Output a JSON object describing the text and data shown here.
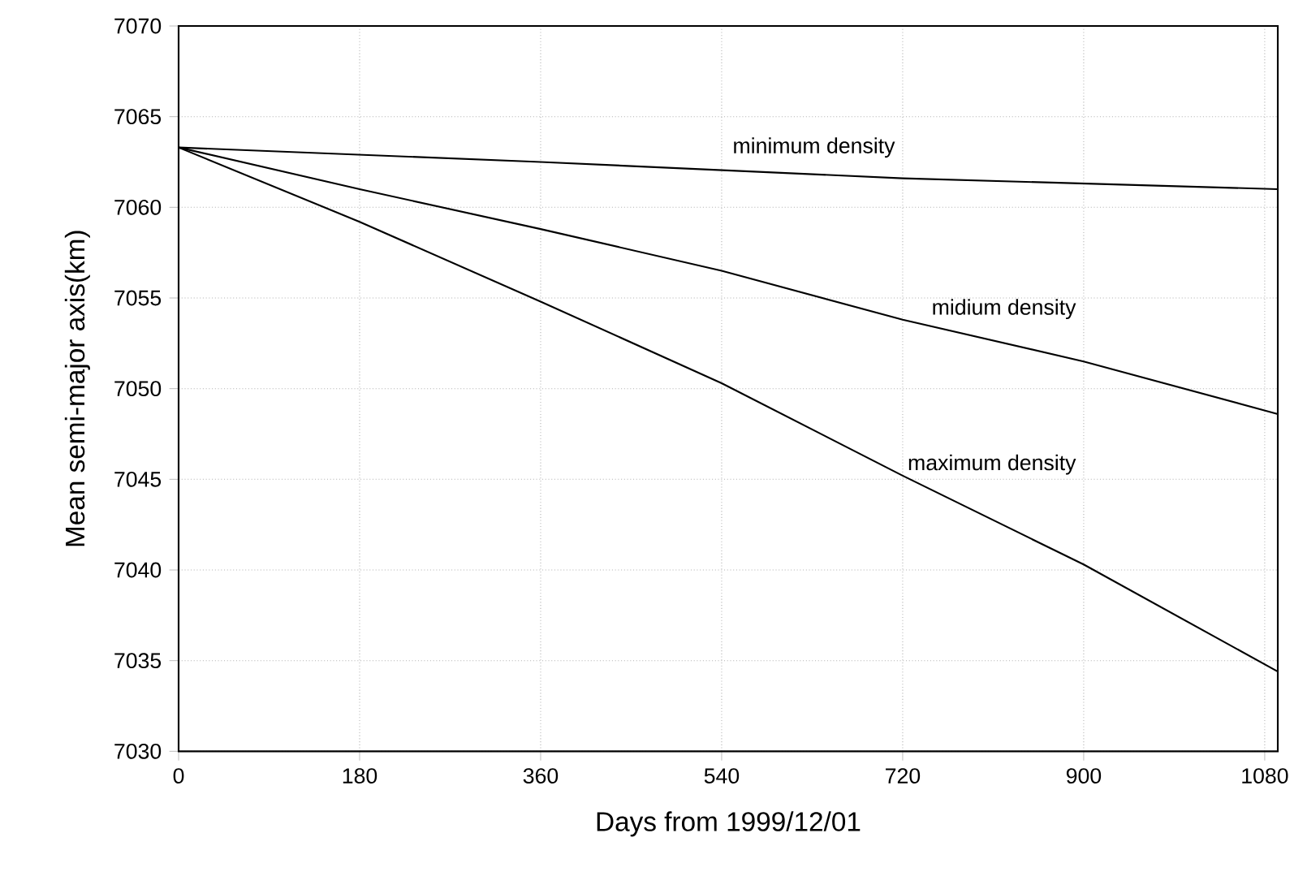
{
  "chart_data": {
    "type": "line",
    "xlabel": "Days from 1999/12/01",
    "ylabel": "Mean semi-major axis(km)",
    "xlim": [
      0,
      1093
    ],
    "ylim": [
      7030,
      7070
    ],
    "xticks": [
      0,
      180,
      360,
      540,
      720,
      900,
      1080
    ],
    "yticks": [
      7030,
      7035,
      7040,
      7045,
      7050,
      7055,
      7060,
      7065,
      7070
    ],
    "grid": true,
    "marker": "none",
    "line_style": "solid",
    "series": [
      {
        "name": "minimum density",
        "color": "#000000",
        "x": [
          0,
          360,
          720,
          1093
        ],
        "values": [
          7063.3,
          7062.5,
          7061.6,
          7061.0
        ]
      },
      {
        "name": "midium density",
        "color": "#000000",
        "x": [
          0,
          180,
          360,
          540,
          720,
          900,
          1093
        ],
        "values": [
          7063.3,
          7061.0,
          7058.8,
          7056.5,
          7053.8,
          7051.5,
          7048.6
        ]
      },
      {
        "name": "maximum density",
        "color": "#000000",
        "x": [
          0,
          180,
          360,
          540,
          720,
          900,
          1093
        ],
        "values": [
          7063.3,
          7059.2,
          7054.8,
          7050.3,
          7045.2,
          7040.3,
          7034.4
        ]
      }
    ]
  }
}
